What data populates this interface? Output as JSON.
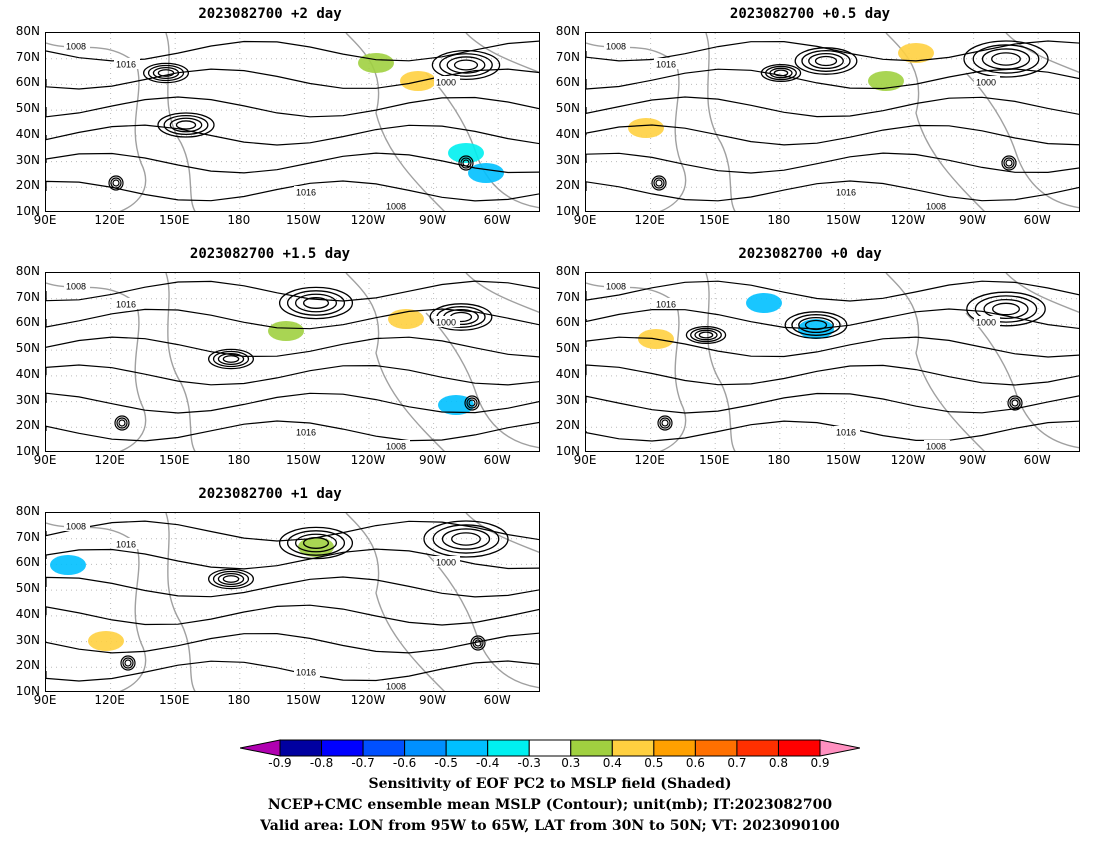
{
  "panels": [
    {
      "id": "p1",
      "title": "2023082700 +2 day"
    },
    {
      "id": "p2",
      "title": "2023082700 +0.5 day"
    },
    {
      "id": "p3",
      "title": "2023082700 +1.5 day"
    },
    {
      "id": "p4",
      "title": "2023082700 +0 day"
    },
    {
      "id": "p5",
      "title": "2023082700 +1 day"
    }
  ],
  "map": {
    "lat_labels": [
      "80N",
      "70N",
      "60N",
      "50N",
      "40N",
      "30N",
      "20N",
      "10N"
    ],
    "lon_labels": [
      "90E",
      "120E",
      "150E",
      "180",
      "150W",
      "120W",
      "90W",
      "60W"
    ],
    "contour_labels": [
      "1000",
      "1008",
      "1016"
    ],
    "colors": {
      "contour": "#000000",
      "coast": "#a0a0a0"
    }
  },
  "colorbar": {
    "labels": [
      "-0.9",
      "-0.8",
      "-0.7",
      "-0.6",
      "-0.5",
      "-0.4",
      "-0.3",
      "0.3",
      "0.4",
      "0.5",
      "0.6",
      "0.7",
      "0.8",
      "0.9"
    ],
    "colors": [
      "#b000b0",
      "#0000a0",
      "#0000ff",
      "#0050ff",
      "#0090ff",
      "#00c0ff",
      "#00f0f0",
      "#ffffff",
      "#a0d040",
      "#ffd040",
      "#ffa000",
      "#ff7000",
      "#ff3000",
      "#ff0000",
      "#ff90c0"
    ]
  },
  "footer": {
    "line1": "Sensitivity of EOF PC2 to MSLP field (Shaded)",
    "line2": "NCEP+CMC ensemble mean MSLP (Contour); unit(mb); IT:2023082700",
    "line3": "Valid area: LON from 95W to 65W, LAT from 30N to 50N; VT: 2023090100"
  }
}
